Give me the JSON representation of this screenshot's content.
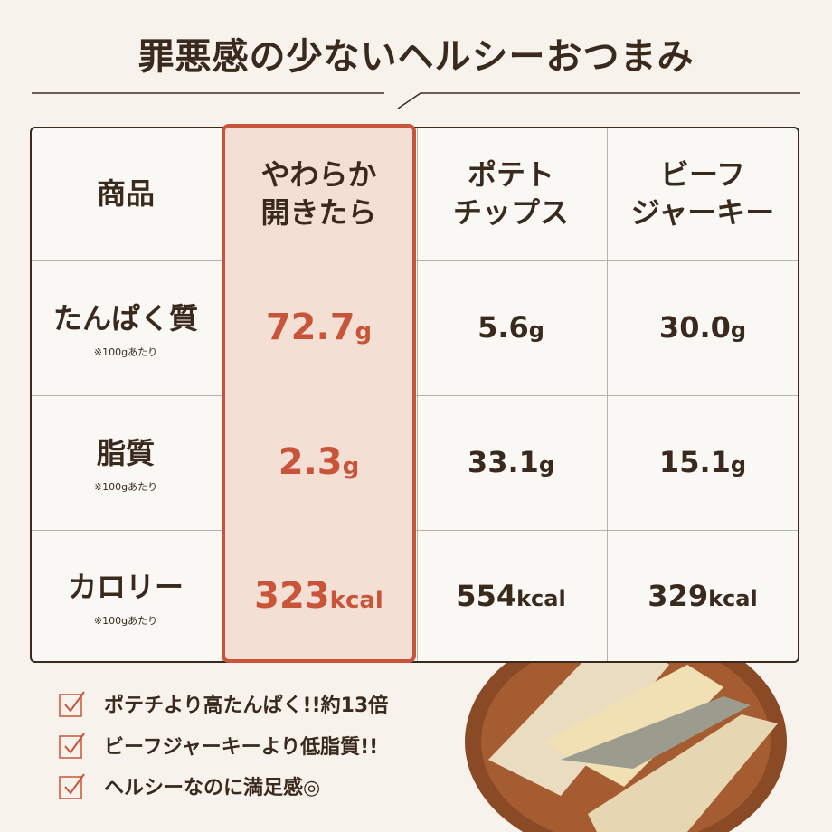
{
  "header": {
    "title": "罪悪感の少ないヘルシーおつまみ"
  },
  "table": {
    "columns": [
      [
        "商品"
      ],
      [
        "やわらか",
        "開きたら"
      ],
      [
        "ポテト",
        "チップス"
      ],
      [
        "ビーフ",
        "ジャーキー"
      ]
    ],
    "rows": [
      {
        "label": "たんぱく質",
        "note": "※100gあたり",
        "cells": [
          {
            "value": "72.7",
            "unit": "g"
          },
          {
            "value": "5.6",
            "unit": "g"
          },
          {
            "value": "30.0",
            "unit": "g"
          }
        ]
      },
      {
        "label": "脂質",
        "note": "※100gあたり",
        "cells": [
          {
            "value": "2.3",
            "unit": "g"
          },
          {
            "value": "33.1",
            "unit": "g"
          },
          {
            "value": "15.1",
            "unit": "g"
          }
        ]
      },
      {
        "label": "カロリー",
        "note": "※100gあたり",
        "cells": [
          {
            "value": "323",
            "unit": "kcal"
          },
          {
            "value": "554",
            "unit": "kcal"
          },
          {
            "value": "329",
            "unit": "kcal"
          }
        ]
      }
    ]
  },
  "checklist": [
    "ポテチより高たんぱく!!約13倍",
    "ビーフジャーキーより低脂質!!",
    "ヘルシーなのに満足感◎"
  ]
}
